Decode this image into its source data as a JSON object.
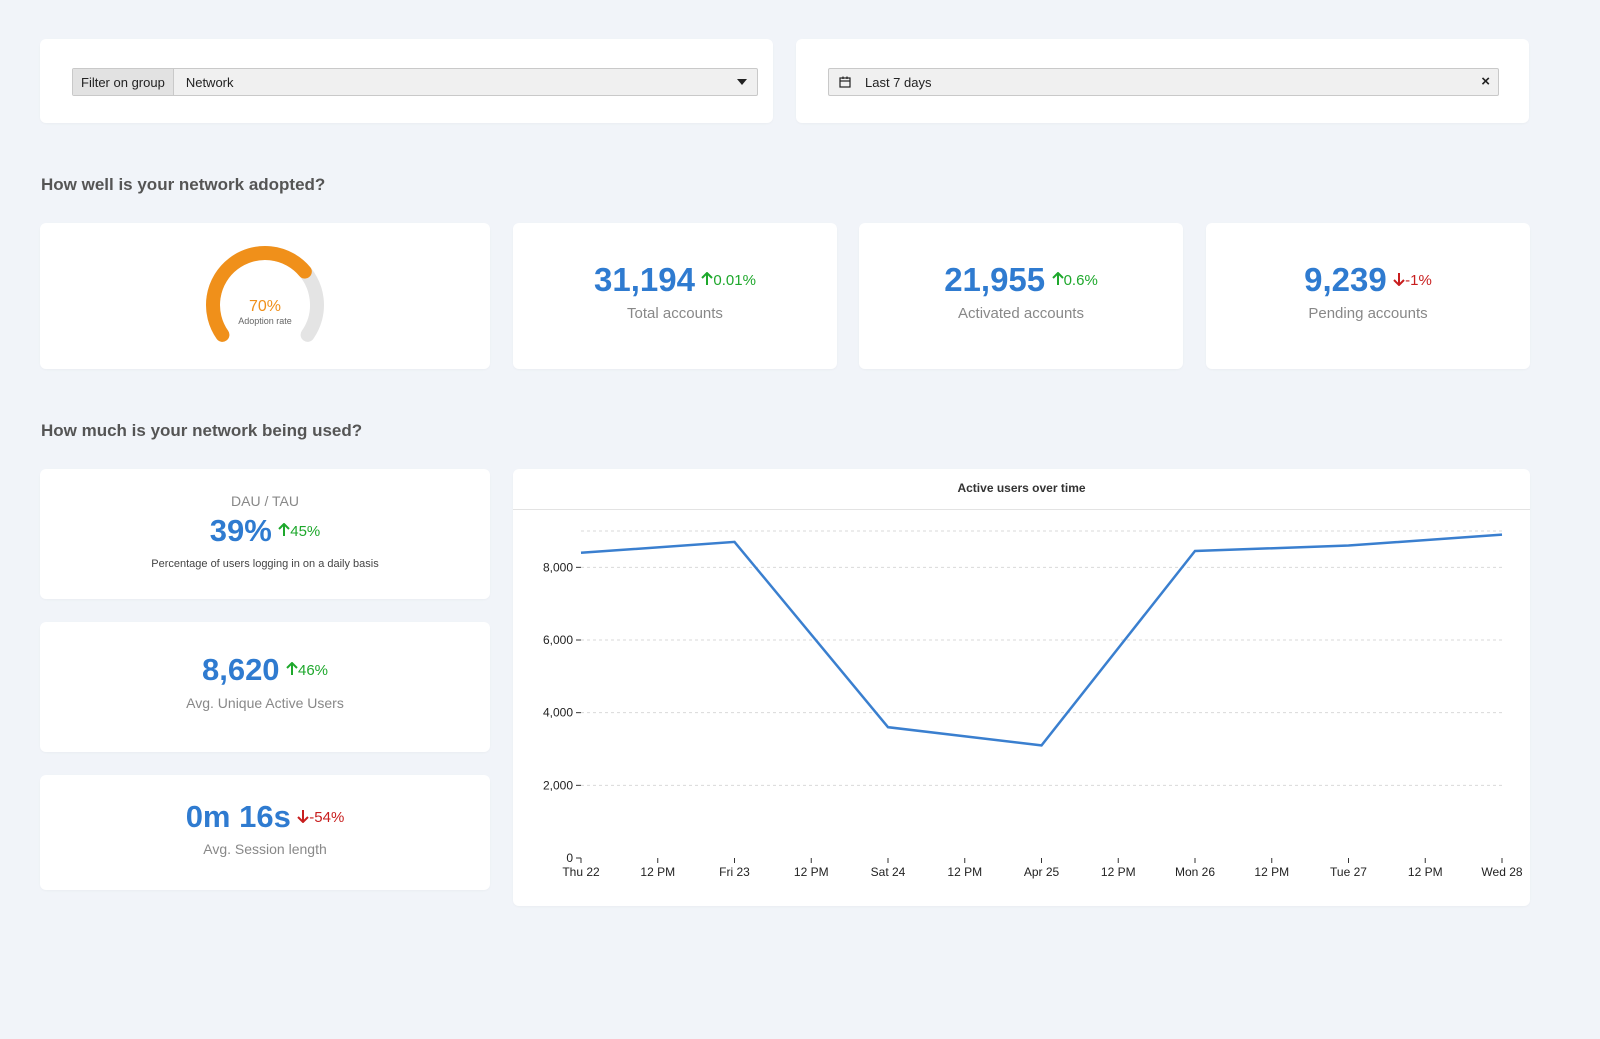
{
  "filter": {
    "label": "Filter on group",
    "value": "Network"
  },
  "date_range": {
    "value": "Last 7 days"
  },
  "sections": {
    "adoption_title": "How well is your network adopted?",
    "usage_title": "How much is your network being used?"
  },
  "adoption": {
    "gauge": {
      "percent_text": "70%",
      "label": "Adoption rate",
      "fraction": 0.7
    },
    "total_accounts": {
      "value": "31,194",
      "delta": "0.01%",
      "direction": "up",
      "label": "Total accounts"
    },
    "activated_accounts": {
      "value": "21,955",
      "delta": "0.6%",
      "direction": "up",
      "label": "Activated accounts"
    },
    "pending_accounts": {
      "value": "9,239",
      "delta": "-1%",
      "direction": "down",
      "label": "Pending accounts"
    }
  },
  "usage": {
    "dau_tau": {
      "heading": "DAU / TAU",
      "value": "39%",
      "delta": "45%",
      "direction": "up",
      "label": "Percentage of users logging in on a daily basis"
    },
    "unique_active": {
      "value": "8,620",
      "delta": "46%",
      "direction": "up",
      "label": "Avg. Unique Active Users"
    },
    "session_length": {
      "value": "0m 16s",
      "delta": "-54%",
      "direction": "down",
      "label": "Avg. Session length"
    }
  },
  "colors": {
    "accent_blue": "#2f7bd0",
    "gauge_orange": "#f0901a",
    "up_green": "#1ea82c",
    "down_red": "#c81e1e"
  },
  "chart_data": {
    "type": "line",
    "title": "Active users over time",
    "x_ticks": [
      "Thu 22",
      "12 PM",
      "Fri 23",
      "12 PM",
      "Sat 24",
      "12 PM",
      "Apr 25",
      "12 PM",
      "Mon 26",
      "12 PM",
      "Tue 27",
      "12 PM",
      "Wed 28"
    ],
    "y_ticks": [
      "0",
      "2,000",
      "4,000",
      "6,000",
      "8,000"
    ],
    "ylim": [
      0,
      9000
    ],
    "grid": true,
    "series": [
      {
        "x": [
          "Thu 22",
          "Fri 23",
          "Sat 24",
          "Apr 25",
          "Mon 26",
          "Tue 27",
          "Wed 28"
        ],
        "values": [
          8400,
          8700,
          3600,
          3100,
          8450,
          8600,
          8900
        ],
        "color": "#3a7fcf"
      }
    ]
  }
}
